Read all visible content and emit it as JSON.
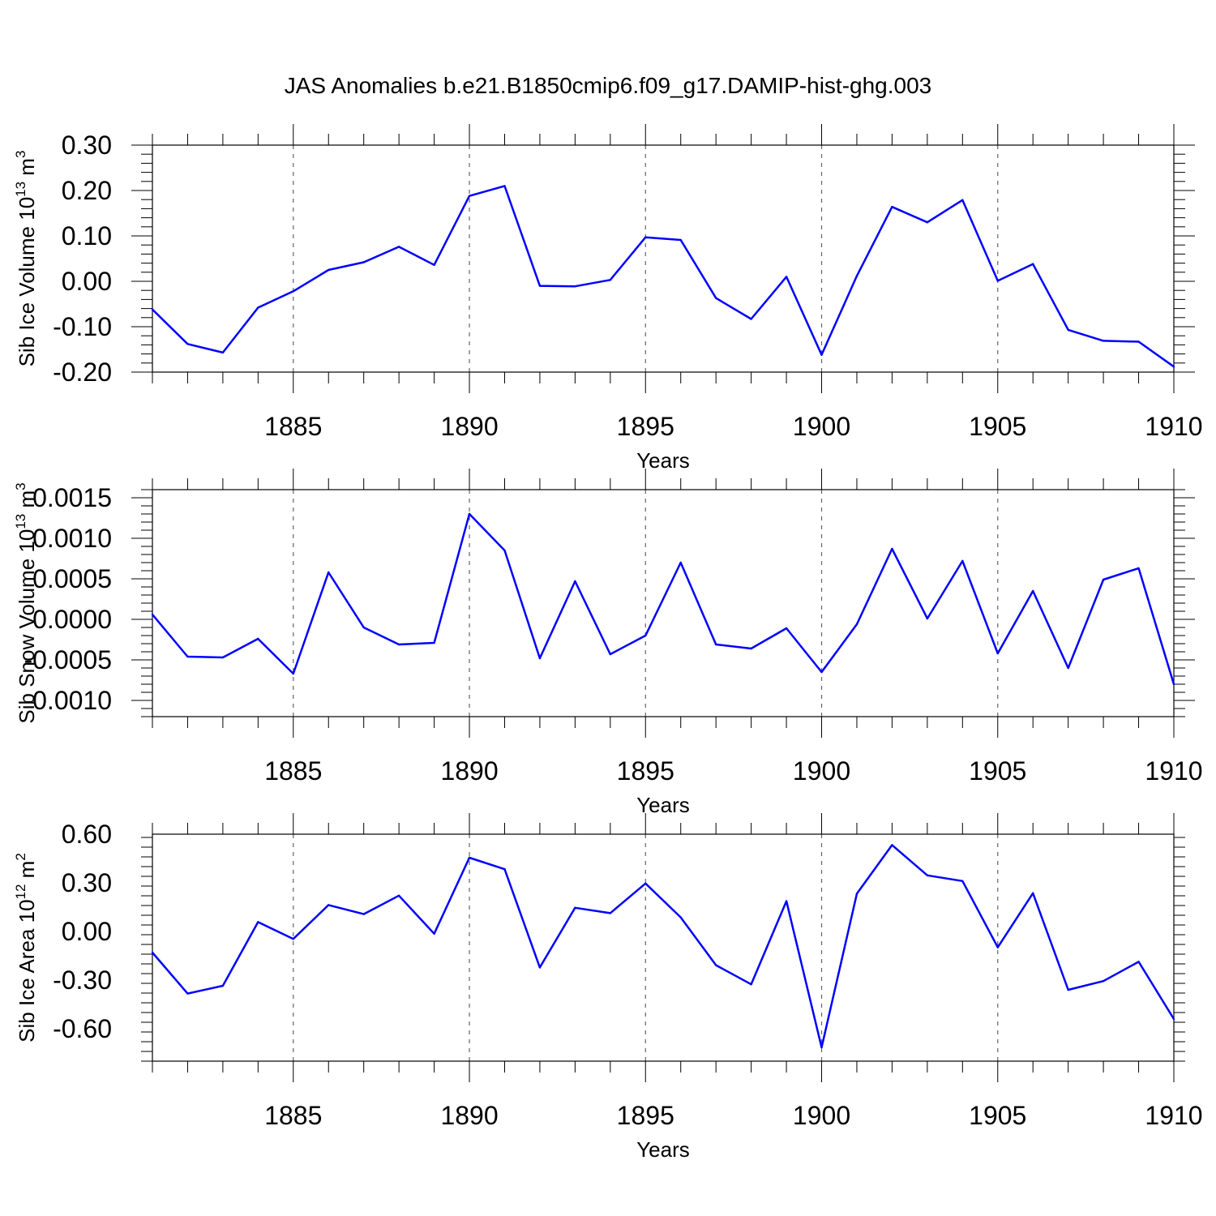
{
  "title": "JAS Anomalies b.e21.B1850cmip6.f09_g17.DAMIP-hist-ghg.003",
  "colors": {
    "line": "#0000ff",
    "axis": "#000000",
    "grid": "#666666"
  },
  "chart_data": [
    {
      "type": "line",
      "ylabel": "Sib Ice Volume 10",
      "ylabel_sup": "13",
      "ylabel_unit": " m",
      "ylabel_unit_sup": "3",
      "xlabel": "Years",
      "xlim": [
        1881,
        1910
      ],
      "ylim": [
        -0.2,
        0.3
      ],
      "xticks": [
        1885,
        1890,
        1895,
        1900,
        1905,
        1910
      ],
      "yticks": [
        -0.2,
        -0.1,
        0.0,
        0.1,
        0.2,
        0.3
      ],
      "ytick_labels": [
        "-0.20",
        "-0.10",
        "0.00",
        "0.10",
        "0.20",
        "0.30"
      ],
      "grid": "vertical dashed at major x ticks",
      "x": [
        1881,
        1882,
        1883,
        1884,
        1885,
        1886,
        1887,
        1888,
        1889,
        1890,
        1891,
        1892,
        1893,
        1894,
        1895,
        1896,
        1897,
        1898,
        1899,
        1900,
        1901,
        1902,
        1903,
        1904,
        1905,
        1906,
        1907,
        1908,
        1909,
        1910
      ],
      "values": [
        -0.062,
        -0.138,
        -0.157,
        -0.058,
        -0.022,
        0.025,
        0.042,
        0.076,
        0.036,
        0.188,
        0.21,
        -0.01,
        -0.011,
        0.003,
        0.097,
        0.091,
        -0.037,
        -0.083,
        0.01,
        -0.162,
        0.012,
        0.164,
        0.13,
        0.179,
        0.001,
        0.038,
        -0.107,
        -0.131,
        -0.133,
        -0.188
      ]
    },
    {
      "type": "line",
      "ylabel": "Sib Snow Volume 10",
      "ylabel_sup": "13",
      "ylabel_unit": " m",
      "ylabel_unit_sup": "3",
      "xlabel": "Years",
      "xlim": [
        1881,
        1910
      ],
      "ylim": [
        -0.0012,
        0.0016
      ],
      "xticks": [
        1885,
        1890,
        1895,
        1900,
        1905,
        1910
      ],
      "yticks": [
        -0.001,
        -0.0005,
        0.0,
        0.0005,
        0.001,
        0.0015
      ],
      "ytick_labels": [
        "-0.0010",
        "-0.0005",
        "0.0000",
        "0.0005",
        "0.0010",
        "0.0015"
      ],
      "grid": "vertical dashed at major x ticks",
      "x": [
        1881,
        1882,
        1883,
        1884,
        1885,
        1886,
        1887,
        1888,
        1889,
        1890,
        1891,
        1892,
        1893,
        1894,
        1895,
        1896,
        1897,
        1898,
        1899,
        1900,
        1901,
        1902,
        1903,
        1904,
        1905,
        1906,
        1907,
        1908,
        1909,
        1910
      ],
      "values": [
        6e-05,
        -0.00046,
        -0.00047,
        -0.00024,
        -0.00067,
        0.00058,
        -0.0001,
        -0.00031,
        -0.00029,
        0.0013,
        0.00085,
        -0.00048,
        0.00047,
        -0.00043,
        -0.0002,
        0.0007,
        -0.00031,
        -0.00036,
        -0.00011,
        -0.00065,
        -6e-05,
        0.00087,
        1e-05,
        0.00072,
        -0.00042,
        0.00035,
        -0.0006,
        0.00049,
        0.00063,
        -0.0008
      ]
    },
    {
      "type": "line",
      "ylabel": "Sib Ice Area 10",
      "ylabel_sup": "12",
      "ylabel_unit": " m",
      "ylabel_unit_sup": "2",
      "xlabel": "Years",
      "xlim": [
        1881,
        1910
      ],
      "ylim": [
        -0.8,
        0.6
      ],
      "xticks": [
        1885,
        1890,
        1895,
        1900,
        1905,
        1910
      ],
      "yticks": [
        -0.6,
        -0.3,
        0.0,
        0.3,
        0.6
      ],
      "ytick_labels": [
        "-0.60",
        "-0.30",
        "0.00",
        "0.30",
        "0.60"
      ],
      "grid": "vertical dashed at major x ticks",
      "x": [
        1881,
        1882,
        1883,
        1884,
        1885,
        1886,
        1887,
        1888,
        1889,
        1890,
        1891,
        1892,
        1893,
        1894,
        1895,
        1896,
        1897,
        1898,
        1899,
        1900,
        1901,
        1902,
        1903,
        1904,
        1905,
        1906,
        1907,
        1908,
        1909,
        1910
      ],
      "values": [
        -0.13,
        -0.383,
        -0.335,
        0.058,
        -0.046,
        0.163,
        0.107,
        0.221,
        -0.014,
        0.455,
        0.384,
        -0.222,
        0.146,
        0.113,
        0.296,
        0.087,
        -0.208,
        -0.326,
        0.187,
        -0.715,
        0.233,
        0.533,
        0.346,
        0.311,
        -0.098,
        0.236,
        -0.36,
        -0.306,
        -0.187,
        -0.54
      ]
    }
  ]
}
